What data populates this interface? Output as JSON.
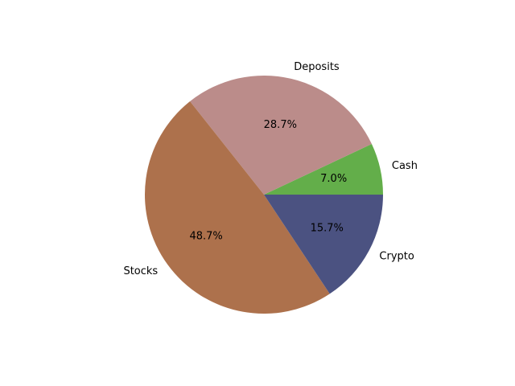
{
  "chart_data": {
    "type": "pie",
    "title": "",
    "categories": [
      "Cash",
      "Deposits",
      "Stocks",
      "Crypto"
    ],
    "values": [
      7.0,
      28.7,
      48.7,
      15.7
    ],
    "percent_labels": [
      "7.0%",
      "28.7%",
      "48.7%",
      "15.7%"
    ],
    "colors": [
      "#63ae4a",
      "#bb8c8a",
      "#ad714c",
      "#4b5281"
    ],
    "start_angle_deg": 0,
    "direction": "counterclockwise",
    "legend": "none"
  }
}
